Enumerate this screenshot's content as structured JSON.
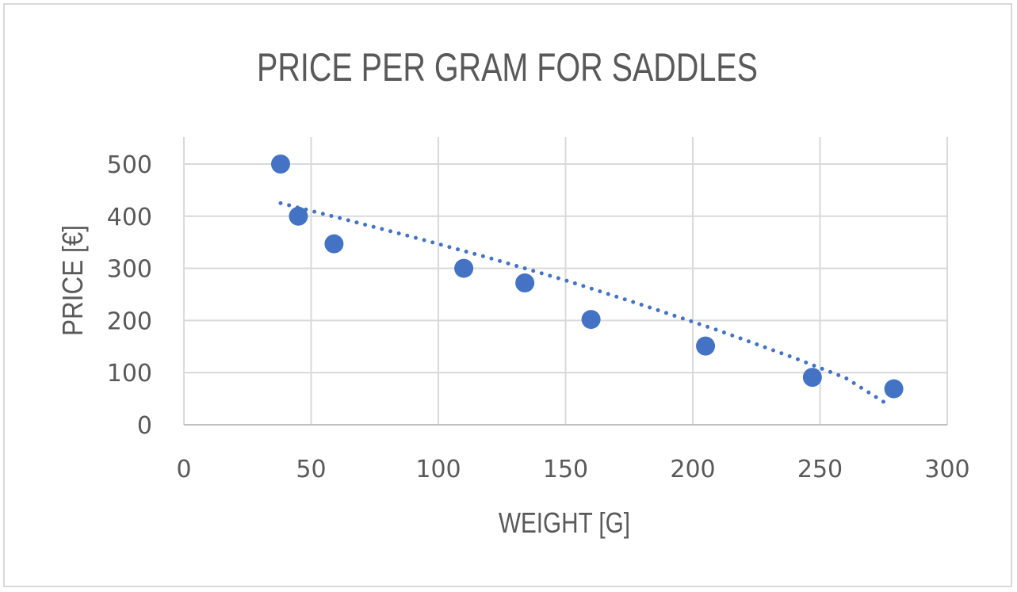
{
  "chart_data": {
    "type": "scatter",
    "title": "PRICE PER GRAM FOR SADDLES",
    "xlabel": "WEIGHT [G]",
    "ylabel": "PRICE [€]",
    "xlim": [
      0,
      300
    ],
    "ylim": [
      0,
      500
    ],
    "xticks": [
      "0",
      "50",
      "100",
      "150",
      "200",
      "250",
      "300"
    ],
    "yticks": [
      "0",
      "100",
      "200",
      "300",
      "400",
      "500"
    ],
    "grid": true,
    "legend": "none",
    "color": "#4472c4",
    "series": [
      {
        "x": [
          38,
          45,
          59,
          110,
          134,
          160,
          205,
          247,
          279
        ],
        "y": [
          500,
          400,
          347,
          300,
          272,
          202,
          151,
          91,
          69
        ]
      }
    ],
    "trendline": {
      "type": "polynomial",
      "style": "dotted",
      "x": [
        38,
        60,
        90,
        120,
        150,
        180,
        210,
        240,
        260,
        275
      ],
      "y": [
        425,
        398,
        360,
        320,
        277,
        230,
        181,
        128,
        90,
        44
      ]
    }
  }
}
